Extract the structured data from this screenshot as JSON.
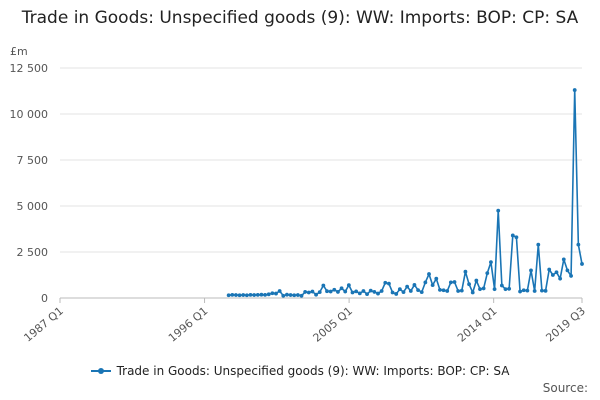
{
  "chart_data": {
    "type": "line",
    "title": "Trade in Goods: Unspecified goods (9): WW: Imports: BOP: CP: SA",
    "unit_label": "£m",
    "y_ticks": [
      "0",
      "2 500",
      "5 000",
      "7 500",
      "10 000",
      "12 500"
    ],
    "y_tick_values": [
      0,
      2500,
      5000,
      7500,
      10000,
      12500
    ],
    "ylim": [
      0,
      12500
    ],
    "x_ticks": [
      "1987 Q1",
      "1996 Q1",
      "2005 Q1",
      "2014 Q1",
      "2019 Q3"
    ],
    "x_tick_values": [
      1987.0,
      1996.0,
      2005.0,
      2014.0,
      2019.5
    ],
    "xlim": [
      1987.0,
      2019.5
    ],
    "grid": true,
    "legend_position": "bottom",
    "series": [
      {
        "name": "Trade in Goods: Unspecified goods (9): WW: Imports: BOP: CP: SA",
        "color": "#1a75b5",
        "x_start": "1997 Q3",
        "points": [
          [
            "1997 Q3",
            150
          ],
          [
            "1997 Q4",
            170
          ],
          [
            "1998 Q1",
            160
          ],
          [
            "1998 Q2",
            150
          ],
          [
            "1998 Q3",
            160
          ],
          [
            "1998 Q4",
            150
          ],
          [
            "1999 Q1",
            170
          ],
          [
            "1999 Q2",
            160
          ],
          [
            "1999 Q3",
            170
          ],
          [
            "1999 Q4",
            180
          ],
          [
            "2000 Q1",
            170
          ],
          [
            "2000 Q2",
            200
          ],
          [
            "2000 Q3",
            260
          ],
          [
            "2000 Q4",
            240
          ],
          [
            "2001 Q1",
            380
          ],
          [
            "2001 Q2",
            120
          ],
          [
            "2001 Q3",
            180
          ],
          [
            "2001 Q4",
            160
          ],
          [
            "2002 Q1",
            150
          ],
          [
            "2002 Q2",
            160
          ],
          [
            "2002 Q3",
            120
          ],
          [
            "2002 Q4",
            330
          ],
          [
            "2003 Q1",
            300
          ],
          [
            "2003 Q2",
            350
          ],
          [
            "2003 Q3",
            180
          ],
          [
            "2003 Q4",
            320
          ],
          [
            "2004 Q1",
            680
          ],
          [
            "2004 Q2",
            370
          ],
          [
            "2004 Q3",
            350
          ],
          [
            "2004 Q4",
            450
          ],
          [
            "2005 Q1",
            330
          ],
          [
            "2005 Q2",
            530
          ],
          [
            "2005 Q3",
            350
          ],
          [
            "2005 Q4",
            700
          ],
          [
            "2006 Q1",
            300
          ],
          [
            "2006 Q2",
            360
          ],
          [
            "2006 Q3",
            250
          ],
          [
            "2006 Q4",
            380
          ],
          [
            "2007 Q1",
            210
          ],
          [
            "2007 Q2",
            400
          ],
          [
            "2007 Q3",
            330
          ],
          [
            "2007 Q4",
            240
          ],
          [
            "2008 Q1",
            380
          ],
          [
            "2008 Q2",
            830
          ],
          [
            "2008 Q3",
            780
          ],
          [
            "2008 Q4",
            300
          ],
          [
            "2009 Q1",
            220
          ],
          [
            "2009 Q2",
            480
          ],
          [
            "2009 Q3",
            320
          ],
          [
            "2009 Q4",
            620
          ],
          [
            "2010 Q1",
            380
          ],
          [
            "2010 Q2",
            710
          ],
          [
            "2010 Q3",
            430
          ],
          [
            "2010 Q4",
            320
          ],
          [
            "2011 Q1",
            850
          ],
          [
            "2011 Q2",
            1300
          ],
          [
            "2011 Q3",
            700
          ],
          [
            "2011 Q4",
            1050
          ],
          [
            "2012 Q1",
            440
          ],
          [
            "2012 Q2",
            420
          ],
          [
            "2012 Q3",
            380
          ],
          [
            "2012 Q4",
            850
          ],
          [
            "2013 Q1",
            870
          ],
          [
            "2013 Q2",
            380
          ],
          [
            "2013 Q3",
            400
          ],
          [
            "2013 Q4",
            1430
          ],
          [
            "2014 Q1",
            750
          ],
          [
            "2014 Q2",
            300
          ],
          [
            "2014 Q3",
            950
          ],
          [
            "2014 Q4",
            480
          ],
          [
            "2015 Q1",
            520
          ],
          [
            "2015 Q2",
            1350
          ],
          [
            "2015 Q3",
            1950
          ],
          [
            "2015 Q4",
            480
          ],
          [
            "2016 Q1",
            4750
          ],
          [
            "2016 Q2",
            680
          ],
          [
            "2016 Q3",
            480
          ],
          [
            "2016 Q4",
            500
          ],
          [
            "2017 Q1",
            3400
          ],
          [
            "2017 Q2",
            3300
          ],
          [
            "2017 Q3",
            350
          ],
          [
            "2017 Q4",
            420
          ],
          [
            "2018 Q1",
            400
          ],
          [
            "2018 Q2",
            1500
          ],
          [
            "2018 Q3",
            380
          ],
          [
            "2018 Q4",
            2900
          ],
          [
            "2019 Q1",
            400
          ],
          [
            "2019 Q2",
            390
          ],
          [
            "2019 Q3",
            1550
          ],
          [
            "2019 Q4",
            1250
          ],
          [
            "2020 Q1",
            1400
          ],
          [
            "2020 Q2",
            1050
          ],
          [
            "2020 Q3",
            2100
          ],
          [
            "2020 Q4",
            1500
          ],
          [
            "2021 Q1",
            1200
          ],
          [
            "2021 Q2",
            11300
          ],
          [
            "2021 Q3",
            2900
          ],
          [
            "2021 Q4",
            1850
          ]
        ]
      }
    ]
  },
  "legend": {
    "label": "Trade in Goods: Unspecified goods (9): WW: Imports: BOP: CP: SA"
  },
  "footer": {
    "source": "Source:"
  }
}
